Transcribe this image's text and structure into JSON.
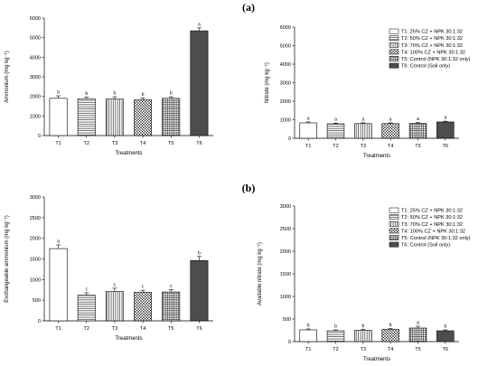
{
  "panels": [
    {
      "label": "(a)"
    },
    {
      "label": "(b)"
    }
  ],
  "legend": [
    {
      "label": "T1: 25% CZ  +  NPK 30:1:32",
      "pattern": "blank"
    },
    {
      "label": "T2: 50% CZ  +  NPK 30:1:32",
      "pattern": "hlines"
    },
    {
      "label": "T3: 70% CZ  +  NPK 30:1:32",
      "pattern": "vlines"
    },
    {
      "label": "T4: 100% CZ  +  NPK 30:1:32",
      "pattern": "diag"
    },
    {
      "label": "T5: Control (NPK 30:1:32 only)",
      "pattern": "grid"
    },
    {
      "label": "T6: Control (Soil only)",
      "pattern": "dense"
    }
  ],
  "chart_data": [
    {
      "type": "bar",
      "panel": "(a)",
      "categories": [
        "T1",
        "T2",
        "T3",
        "T4",
        "T5",
        "T6"
      ],
      "values": [
        1900,
        1880,
        1860,
        1820,
        1900,
        5350
      ],
      "errors": [
        130,
        90,
        120,
        100,
        80,
        150
      ],
      "letters": [
        "b",
        "b",
        "b",
        "b",
        "b",
        "a"
      ],
      "xlabel": "Treatments",
      "ylabel": "Ammonium (mg kg⁻¹)",
      "ylim": [
        0,
        6000
      ],
      "yticks": [
        0,
        1000,
        2000,
        3000,
        4000,
        5000,
        6000
      ],
      "legend": false
    },
    {
      "type": "bar",
      "panel": "(a)",
      "categories": [
        "T1",
        "T2",
        "T3",
        "T4",
        "T5",
        "T6"
      ],
      "values": [
        830,
        780,
        790,
        790,
        800,
        880
      ],
      "errors": [
        50,
        40,
        45,
        40,
        45,
        40
      ],
      "letters": [
        "a",
        "a",
        "a",
        "a",
        "a",
        "a"
      ],
      "xlabel": "Treatments",
      "ylabel": "Nitrate (mg kg⁻¹)",
      "ylim": [
        0,
        6000
      ],
      "yticks": [
        0,
        1000,
        2000,
        3000,
        4000,
        5000,
        6000
      ],
      "legend": "top-right"
    },
    {
      "type": "bar",
      "panel": "(b)",
      "categories": [
        "T1",
        "T2",
        "T3",
        "T4",
        "T5",
        "T6"
      ],
      "values": [
        1750,
        620,
        710,
        690,
        700,
        1460
      ],
      "errors": [
        90,
        60,
        80,
        50,
        60,
        100
      ],
      "letters": [
        "a",
        "c",
        "c",
        "c",
        "c",
        "b"
      ],
      "xlabel": "Treatments",
      "ylabel": "Exchangeable ammonium (mg kg⁻¹)",
      "ylim": [
        0,
        3000
      ],
      "yticks": [
        0,
        500,
        1000,
        1500,
        2000,
        2500,
        3000
      ],
      "legend": false
    },
    {
      "type": "bar",
      "panel": "(b)",
      "categories": [
        "T1",
        "T2",
        "T3",
        "T4",
        "T5",
        "T6"
      ],
      "values": [
        260,
        240,
        250,
        270,
        300,
        240
      ],
      "errors": [
        20,
        20,
        25,
        20,
        40,
        20
      ],
      "letters": [
        "b",
        "b",
        "b",
        "b",
        "a",
        "b"
      ],
      "xlabel": "Treatments",
      "ylabel": "Available nitrate (mg kg⁻¹)",
      "ylim": [
        0,
        3000
      ],
      "yticks": [
        0,
        500,
        1000,
        1500,
        2000,
        2500,
        3000
      ],
      "legend": "top-right"
    }
  ]
}
